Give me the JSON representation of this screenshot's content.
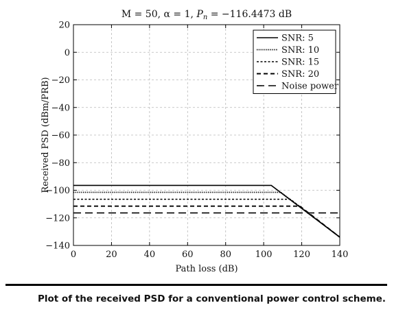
{
  "chart_data": {
    "type": "line",
    "title_parts": {
      "prefix": "M = 50, α = 1, ",
      "var": "P",
      "sub": "n",
      "suffix": " = −116.4473 dB"
    },
    "xlabel": "Path loss (dB)",
    "ylabel": "Received PSD (dBm/PRB)",
    "xlim": [
      0,
      140
    ],
    "ylim": [
      -140,
      20
    ],
    "xticks": [
      0,
      20,
      40,
      60,
      80,
      100,
      120,
      140
    ],
    "yticks": [
      20,
      0,
      -20,
      -40,
      -60,
      -80,
      -100,
      -120,
      -140
    ],
    "ytick_labels": [
      "20",
      "0",
      "−20",
      "−40",
      "−60",
      "−80",
      "−100",
      "−120",
      "−140"
    ],
    "grid": true,
    "legend_position": "top-right",
    "series": [
      {
        "name": "SNR: 5",
        "style": "solid",
        "points": [
          [
            0,
            -96.5
          ],
          [
            104,
            -96.5
          ],
          [
            140,
            -134
          ]
        ]
      },
      {
        "name": "SNR: 10",
        "style": "dotted",
        "points": [
          [
            0,
            -101.5
          ],
          [
            109,
            -101.5
          ],
          [
            140,
            -134
          ]
        ]
      },
      {
        "name": "SNR: 15",
        "style": "short-dash",
        "points": [
          [
            0,
            -106.5
          ],
          [
            114,
            -106.5
          ],
          [
            140,
            -134
          ]
        ]
      },
      {
        "name": "SNR: 20",
        "style": "medium-dash",
        "points": [
          [
            0,
            -111.5
          ],
          [
            119,
            -111.5
          ],
          [
            140,
            -134
          ]
        ]
      },
      {
        "name": "Noise power",
        "style": "long-dash",
        "points": [
          [
            0,
            -116.4473
          ],
          [
            140,
            -116.4473
          ]
        ]
      }
    ]
  },
  "caption": "Plot of the received PSD for a conventional power control scheme."
}
